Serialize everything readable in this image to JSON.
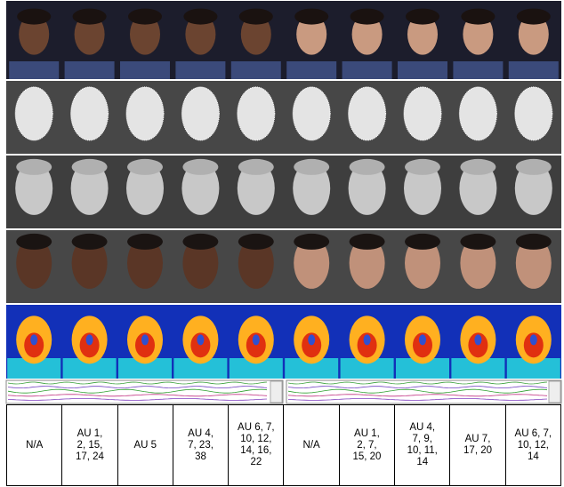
{
  "table": {
    "cells": [
      [
        "N/A"
      ],
      [
        "AU 1,",
        "2, 15,",
        "17, 24"
      ],
      [
        "AU 5"
      ],
      [
        "AU 4,",
        "7, 23,",
        "38"
      ],
      [
        "AU 6, 7,",
        "10, 12,",
        "14, 16,",
        "22"
      ],
      [
        "N/A"
      ],
      [
        "AU 1,",
        "2, 7,",
        "15, 20"
      ],
      [
        "AU 4,",
        "7, 9,",
        "10, 11,",
        "14"
      ],
      [
        "AU 7,",
        "17, 20"
      ],
      [
        "AU 6, 7,",
        "10, 12,",
        "14"
      ]
    ]
  }
}
